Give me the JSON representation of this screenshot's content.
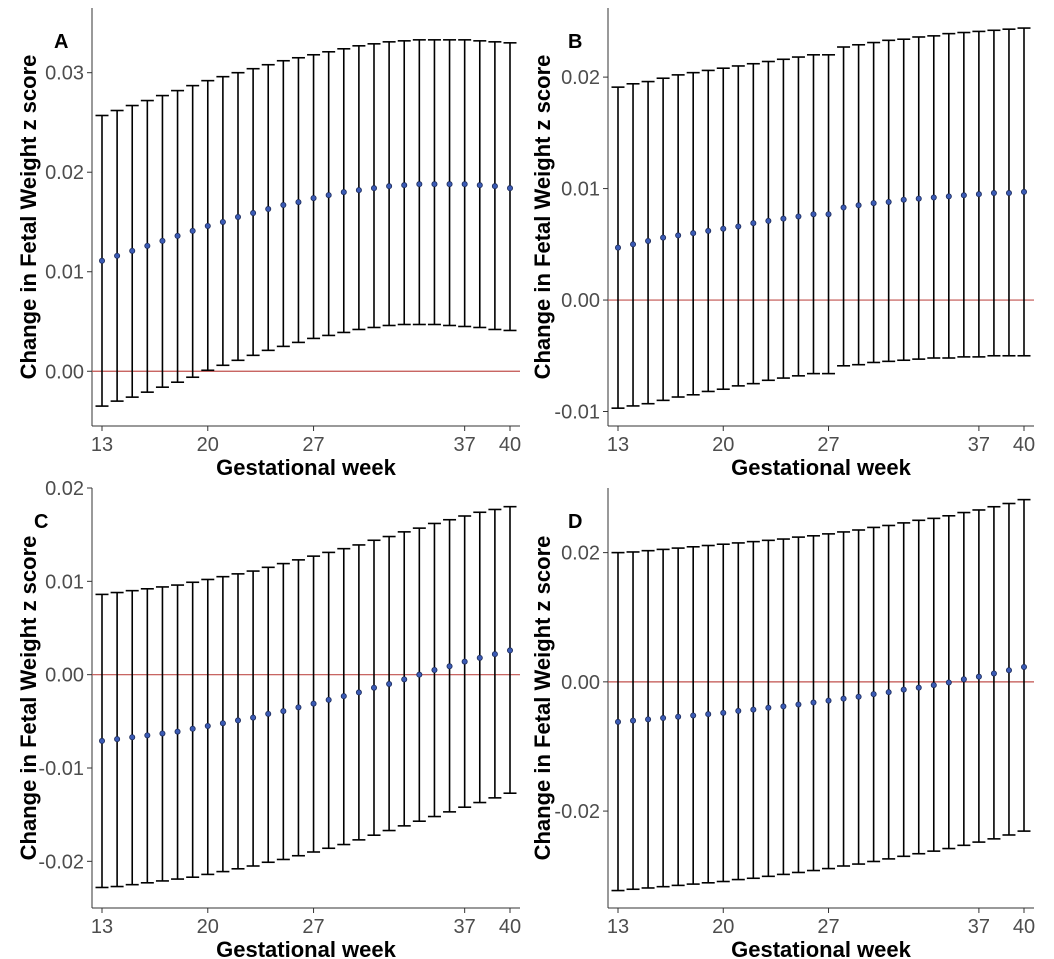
{
  "figure": {
    "ylabel": "Change in Fetal Weight z score",
    "xlabel": "Gestational week",
    "colors": {
      "point": "#3b5bb5",
      "point_edge": "#1c2b5a",
      "errorbar": "#000000",
      "refline": "#c0504d",
      "axis": "#333333"
    }
  },
  "chart_data": [
    {
      "type": "scatter",
      "panel": "A",
      "ylabel": "Change in Fetal Weight z score",
      "xlabel": "Gestational week",
      "xlim": [
        13,
        40
      ],
      "ylim": [
        -0.0055,
        0.0365
      ],
      "xticks": [
        13,
        20,
        27,
        37,
        40
      ],
      "yticks": [
        0.0,
        0.01,
        0.02,
        0.03
      ],
      "ytick_labels": [
        "0.00",
        "0.01",
        "0.02",
        "0.03"
      ],
      "reference_line": 0,
      "x": [
        13,
        14,
        15,
        16,
        17,
        18,
        19,
        20,
        21,
        22,
        23,
        24,
        25,
        26,
        27,
        28,
        29,
        30,
        31,
        32,
        33,
        34,
        35,
        36,
        37,
        38,
        39,
        40
      ],
      "estimate": [
        0.0111,
        0.0116,
        0.0121,
        0.0126,
        0.0131,
        0.0136,
        0.0141,
        0.0146,
        0.015,
        0.0155,
        0.0159,
        0.0163,
        0.0167,
        0.017,
        0.0174,
        0.0177,
        0.018,
        0.0182,
        0.0184,
        0.0186,
        0.0187,
        0.0188,
        0.0188,
        0.0188,
        0.0188,
        0.0187,
        0.0186,
        0.0184
      ],
      "lower": [
        -0.0035,
        -0.003,
        -0.0026,
        -0.0021,
        -0.0016,
        -0.0011,
        -0.0006,
        0.0001,
        0.0006,
        0.0011,
        0.0016,
        0.0021,
        0.0025,
        0.0029,
        0.0033,
        0.0036,
        0.0039,
        0.0042,
        0.0044,
        0.0046,
        0.0047,
        0.0047,
        0.0047,
        0.0046,
        0.0045,
        0.0044,
        0.0042,
        0.0041
      ],
      "upper": [
        0.0257,
        0.0262,
        0.0267,
        0.0272,
        0.0277,
        0.0282,
        0.0287,
        0.0292,
        0.0296,
        0.03,
        0.0304,
        0.0308,
        0.0312,
        0.0315,
        0.0318,
        0.0321,
        0.0324,
        0.0327,
        0.0329,
        0.0331,
        0.0332,
        0.0333,
        0.0333,
        0.0333,
        0.0333,
        0.0332,
        0.0331,
        0.033
      ]
    },
    {
      "type": "scatter",
      "panel": "B",
      "ylabel": "Change in Fetal Weight z score",
      "xlabel": "Gestational week",
      "xlim": [
        13,
        40
      ],
      "ylim": [
        -0.0113,
        0.0262
      ],
      "xticks": [
        13,
        20,
        27,
        37,
        40
      ],
      "yticks": [
        -0.01,
        0.0,
        0.01,
        0.02
      ],
      "ytick_labels": [
        "-0.01",
        "0.00",
        "0.01",
        "0.02"
      ],
      "reference_line": 0,
      "x": [
        13,
        14,
        15,
        16,
        17,
        18,
        19,
        20,
        21,
        22,
        23,
        24,
        25,
        26,
        27,
        28,
        29,
        30,
        31,
        32,
        33,
        34,
        35,
        36,
        37,
        38,
        39,
        40
      ],
      "estimate": [
        0.0047,
        0.005,
        0.0053,
        0.0056,
        0.0058,
        0.006,
        0.0062,
        0.0064,
        0.0066,
        0.0069,
        0.0071,
        0.0073,
        0.0075,
        0.0077,
        0.0077,
        0.0083,
        0.0085,
        0.0087,
        0.0088,
        0.009,
        0.0091,
        0.0092,
        0.0093,
        0.0094,
        0.0095,
        0.0096,
        0.0096,
        0.0097
      ],
      "lower": [
        -0.0097,
        -0.0095,
        -0.0093,
        -0.009,
        -0.0087,
        -0.0085,
        -0.0082,
        -0.008,
        -0.0077,
        -0.0075,
        -0.0072,
        -0.007,
        -0.0068,
        -0.0066,
        -0.0066,
        -0.0059,
        -0.0058,
        -0.0056,
        -0.0055,
        -0.0054,
        -0.0053,
        -0.0052,
        -0.0052,
        -0.0051,
        -0.0051,
        -0.005,
        -0.005,
        -0.005
      ],
      "upper": [
        0.0191,
        0.0194,
        0.0196,
        0.0199,
        0.0202,
        0.0204,
        0.0206,
        0.0208,
        0.021,
        0.0212,
        0.0214,
        0.0216,
        0.0218,
        0.022,
        0.022,
        0.0227,
        0.0229,
        0.0231,
        0.0233,
        0.0234,
        0.0236,
        0.0237,
        0.0239,
        0.024,
        0.0241,
        0.0242,
        0.0243,
        0.0244
      ]
    },
    {
      "type": "scatter",
      "panel": "C",
      "ylabel": "Change in Fetal Weight z score",
      "xlabel": "Gestational week",
      "xlim": [
        13,
        40
      ],
      "ylim": [
        -0.025,
        0.02
      ],
      "xticks": [
        13,
        20,
        27,
        37,
        40
      ],
      "yticks": [
        -0.02,
        -0.01,
        0.0,
        0.01,
        0.02
      ],
      "ytick_labels": [
        "-0.02",
        "-0.01",
        "0.00",
        "0.01",
        "0.02"
      ],
      "reference_line": 0,
      "x": [
        13,
        14,
        15,
        16,
        17,
        18,
        19,
        20,
        21,
        22,
        23,
        24,
        25,
        26,
        27,
        28,
        29,
        30,
        31,
        32,
        33,
        34,
        35,
        36,
        37,
        38,
        39,
        40
      ],
      "estimate": [
        -0.0071,
        -0.0069,
        -0.0067,
        -0.0065,
        -0.0063,
        -0.0061,
        -0.0058,
        -0.0055,
        -0.0052,
        -0.0049,
        -0.0046,
        -0.0042,
        -0.0039,
        -0.0035,
        -0.0031,
        -0.0027,
        -0.0023,
        -0.0019,
        -0.0014,
        -0.001,
        -0.0005,
        0.0,
        0.0005,
        0.0009,
        0.0014,
        0.0018,
        0.0022,
        0.0026
      ],
      "lower": [
        -0.0228,
        -0.0227,
        -0.0225,
        -0.0223,
        -0.0221,
        -0.0219,
        -0.0217,
        -0.0214,
        -0.0211,
        -0.0208,
        -0.0205,
        -0.0201,
        -0.0198,
        -0.0194,
        -0.019,
        -0.0186,
        -0.0182,
        -0.0177,
        -0.0172,
        -0.0167,
        -0.0162,
        -0.0157,
        -0.0152,
        -0.0147,
        -0.0142,
        -0.0137,
        -0.0132,
        -0.0127
      ],
      "upper": [
        0.0086,
        0.0088,
        0.009,
        0.0092,
        0.0094,
        0.0096,
        0.0099,
        0.0102,
        0.0105,
        0.0108,
        0.0111,
        0.0115,
        0.0119,
        0.0123,
        0.0127,
        0.0131,
        0.0135,
        0.0139,
        0.0144,
        0.0148,
        0.0153,
        0.0157,
        0.0162,
        0.0166,
        0.017,
        0.0174,
        0.0177,
        0.018
      ]
    },
    {
      "type": "scatter",
      "panel": "D",
      "ylabel": "Change in Fetal Weight z score",
      "xlabel": "Gestational week",
      "xlim": [
        13,
        40
      ],
      "ylim": [
        -0.035,
        0.03
      ],
      "xticks": [
        13,
        20,
        27,
        37,
        40
      ],
      "yticks": [
        -0.02,
        0.0,
        0.02
      ],
      "ytick_labels": [
        "-0.02",
        "0.00",
        "0.02"
      ],
      "reference_line": 0,
      "x": [
        13,
        14,
        15,
        16,
        17,
        18,
        19,
        20,
        21,
        22,
        23,
        24,
        25,
        26,
        27,
        28,
        29,
        30,
        31,
        32,
        33,
        34,
        35,
        36,
        37,
        38,
        39,
        40
      ],
      "estimate": [
        -0.0062,
        -0.006,
        -0.0058,
        -0.0056,
        -0.0054,
        -0.0052,
        -0.005,
        -0.0048,
        -0.0045,
        -0.0043,
        -0.004,
        -0.0038,
        -0.0035,
        -0.0032,
        -0.0029,
        -0.0026,
        -0.0023,
        -0.0019,
        -0.0016,
        -0.0012,
        -0.0009,
        -0.0005,
        -0.0001,
        0.0004,
        0.0008,
        0.0013,
        0.0018,
        0.0023
      ],
      "lower": [
        -0.0323,
        -0.0321,
        -0.0319,
        -0.0317,
        -0.0315,
        -0.0313,
        -0.0311,
        -0.0309,
        -0.0306,
        -0.0304,
        -0.0301,
        -0.0298,
        -0.0295,
        -0.0292,
        -0.0289,
        -0.0285,
        -0.0282,
        -0.0278,
        -0.0274,
        -0.027,
        -0.0266,
        -0.0262,
        -0.0258,
        -0.0253,
        -0.0248,
        -0.0243,
        -0.0237,
        -0.0231
      ],
      "upper": [
        0.02,
        0.0201,
        0.0203,
        0.0205,
        0.0207,
        0.0209,
        0.0211,
        0.0213,
        0.0215,
        0.0217,
        0.0219,
        0.0221,
        0.0224,
        0.0226,
        0.0229,
        0.0232,
        0.0235,
        0.0239,
        0.0242,
        0.0246,
        0.025,
        0.0253,
        0.0257,
        0.0262,
        0.0266,
        0.0271,
        0.0276,
        0.0282
      ]
    }
  ]
}
